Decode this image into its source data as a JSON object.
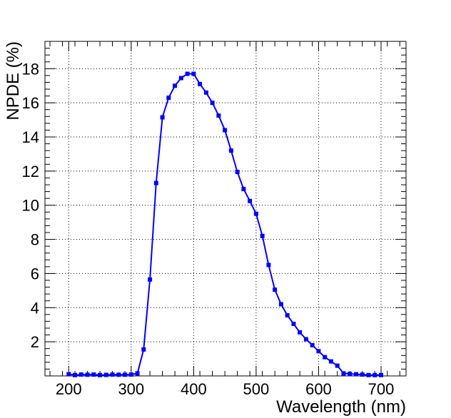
{
  "chart_data": {
    "type": "line",
    "title": "",
    "xlabel": "Wavelength (nm)",
    "ylabel": "NPDE (%)",
    "xlim": [
      162,
      740
    ],
    "ylim": [
      0,
      19.6
    ],
    "x_ticks": [
      200,
      300,
      400,
      500,
      600,
      700
    ],
    "x_tick_labels": [
      "200",
      "300",
      "400",
      "500",
      "600",
      "700"
    ],
    "y_ticks": [
      2,
      4,
      6,
      8,
      10,
      12,
      14,
      16,
      18
    ],
    "y_tick_labels": [
      "2",
      "4",
      "6",
      "8",
      "10",
      "12",
      "14",
      "16",
      "18"
    ],
    "grid": true,
    "marker": "square",
    "series_color": "#0000ff",
    "series": [
      {
        "x": [
          200,
          210,
          220,
          230,
          240,
          250,
          260,
          270,
          280,
          290,
          300,
          310,
          320,
          330,
          340,
          350,
          360,
          370,
          380,
          390,
          400,
          410,
          420,
          430,
          440,
          450,
          460,
          470,
          480,
          490,
          500,
          510,
          520,
          530,
          540,
          550,
          560,
          570,
          580,
          590,
          600,
          610,
          620,
          630,
          640,
          650,
          660,
          670,
          680,
          690,
          700
        ],
        "values": [
          0.1,
          0.05,
          0.08,
          0.07,
          0.08,
          0.05,
          0.06,
          0.08,
          0.07,
          0.07,
          0.08,
          0.15,
          1.55,
          5.65,
          11.3,
          15.15,
          16.3,
          17.0,
          17.45,
          17.7,
          17.7,
          17.1,
          16.6,
          16.0,
          15.25,
          14.4,
          13.2,
          11.95,
          10.95,
          10.25,
          9.5,
          8.2,
          6.5,
          5.05,
          4.2,
          3.55,
          3.05,
          2.55,
          2.15,
          1.8,
          1.45,
          1.1,
          0.85,
          0.6,
          0.15,
          0.12,
          0.1,
          0.08,
          0.05,
          0.05,
          0.05
        ]
      }
    ]
  }
}
